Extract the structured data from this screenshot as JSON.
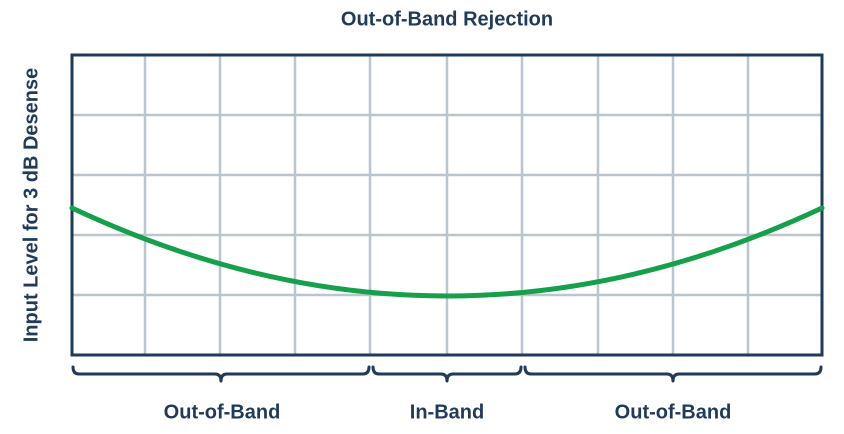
{
  "title": "Out-of-Band Rejection",
  "y_axis_label": "Input Level for 3 dB Desense",
  "regions": [
    {
      "label": "Out-of-Band"
    },
    {
      "label": "In-Band"
    },
    {
      "label": "Out-of-Band"
    }
  ]
}
